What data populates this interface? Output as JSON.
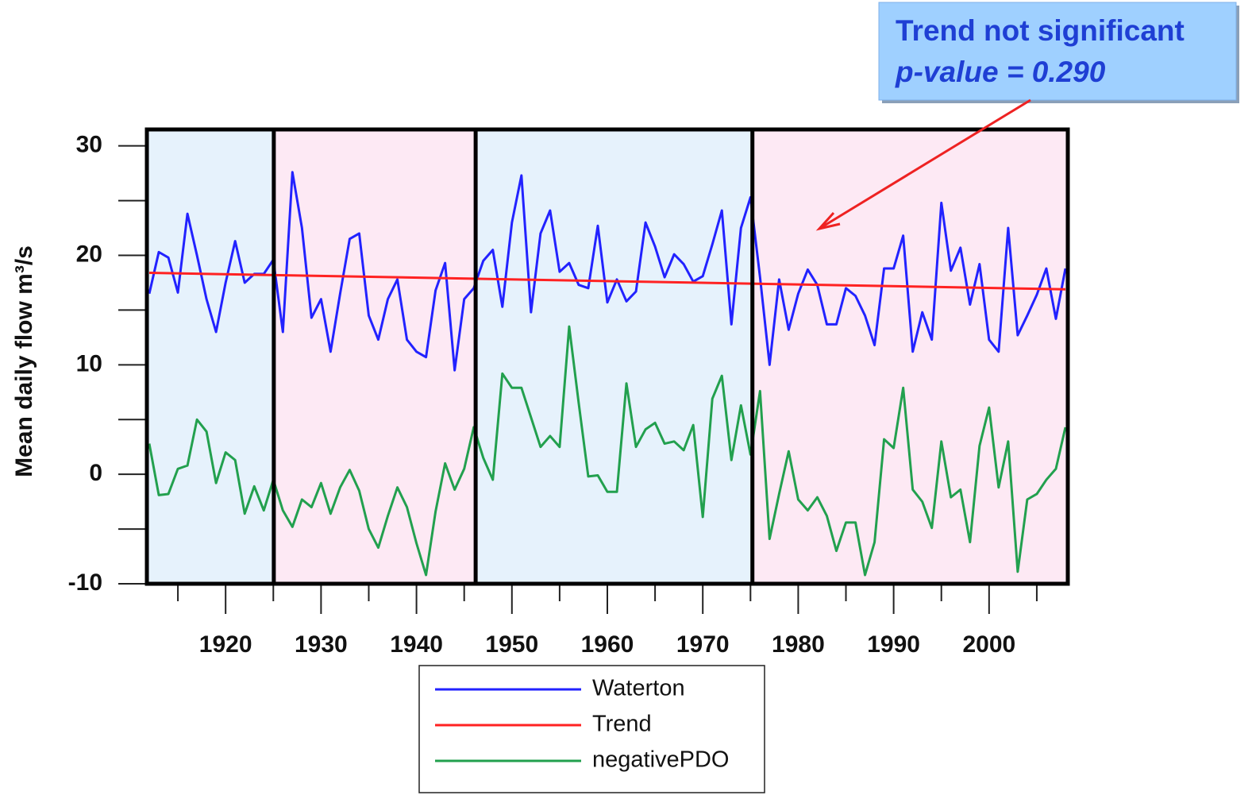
{
  "chart_data": {
    "type": "line",
    "y_label": "Mean daily flow m³/s",
    "annotation": {
      "title": "Trend not significant",
      "subtitle": "p-value = 0.290"
    },
    "xlim": [
      1911.75,
      2008.25
    ],
    "ylim": [
      -10,
      31.5
    ],
    "xticks": [
      1920,
      1930,
      1940,
      1950,
      1960,
      1970,
      1980,
      1990,
      2000
    ],
    "xminor_ticks": [
      1915,
      1925,
      1935,
      1945,
      1955,
      1965,
      1975,
      1985,
      1995,
      2005
    ],
    "yticks": [
      -10,
      0,
      10,
      20,
      30
    ],
    "yminor_ticks": [
      -5,
      5,
      15,
      25
    ],
    "regions": [
      {
        "start": 1911.75,
        "end": 1925.05,
        "color": "#e6f2fc"
      },
      {
        "start": 1925.05,
        "end": 1946.2,
        "color": "#fde9f4"
      },
      {
        "start": 1946.2,
        "end": 1975.2,
        "color": "#e6f2fc"
      },
      {
        "start": 1975.2,
        "end": 2008.25,
        "color": "#fde9f4"
      }
    ],
    "series": [
      {
        "name": "Waterton",
        "color": "#2222ff",
        "x": [
          1912,
          1913,
          1914,
          1915,
          1916,
          1917,
          1918,
          1919,
          1920,
          1921,
          1922,
          1923,
          1924,
          1925,
          1926,
          1927,
          1928,
          1929,
          1930,
          1931,
          1932,
          1933,
          1934,
          1935,
          1936,
          1937,
          1938,
          1939,
          1940,
          1941,
          1942,
          1943,
          1944,
          1945,
          1946,
          1947,
          1948,
          1949,
          1950,
          1951,
          1952,
          1953,
          1954,
          1955,
          1956,
          1957,
          1958,
          1959,
          1960,
          1961,
          1962,
          1963,
          1964,
          1965,
          1966,
          1967,
          1968,
          1969,
          1970,
          1971,
          1972,
          1973,
          1974,
          1975,
          1976,
          1977,
          1978,
          1979,
          1980,
          1981,
          1982,
          1983,
          1984,
          1985,
          1986,
          1987,
          1988,
          1989,
          1990,
          1991,
          1992,
          1993,
          1994,
          1995,
          1996,
          1997,
          1998,
          1999,
          2000,
          2001,
          2002,
          2003,
          2004,
          2005,
          2006,
          2007,
          2008
        ],
        "values": [
          16.5,
          20.3,
          19.8,
          16.6,
          23.8,
          20,
          16,
          13,
          17.5,
          21.3,
          17.5,
          18.3,
          18.3,
          19.6,
          13,
          27.6,
          22.5,
          14.3,
          16,
          11.2,
          16.5,
          21.5,
          22,
          14.5,
          12.3,
          16,
          17.8,
          12.3,
          11.2,
          10.7,
          16.8,
          19.3,
          9.5,
          16,
          17,
          19.5,
          20.5,
          15.3,
          23,
          27.3,
          14.8,
          22,
          24.1,
          18.5,
          19.3,
          17.3,
          17,
          22.7,
          15.7,
          17.8,
          15.8,
          16.7,
          23,
          20.8,
          18,
          20.1,
          19.2,
          17.6,
          18.1,
          21,
          24.1,
          13.7,
          22.5,
          25.3,
          18,
          10,
          17.8,
          13.2,
          16.5,
          18.7,
          17.3,
          13.7,
          13.7,
          17,
          16.3,
          14.5,
          11.8,
          18.8,
          18.8,
          21.8,
          11.2,
          14.8,
          12.3,
          24.8,
          18.6,
          20.7,
          15.5,
          19.2,
          12.3,
          11.2,
          22.5,
          12.7,
          14.5,
          16.4,
          18.8,
          14.2,
          18.8
        ]
      },
      {
        "name": "Trend",
        "color": "#ff2222",
        "x": [
          1912,
          2008
        ],
        "values": [
          18.4,
          16.9
        ]
      },
      {
        "name": "negativePDO",
        "color": "#22a04e",
        "x": [
          1912,
          1913,
          1914,
          1915,
          1916,
          1917,
          1918,
          1919,
          1920,
          1921,
          1922,
          1923,
          1924,
          1925,
          1926,
          1927,
          1928,
          1929,
          1930,
          1931,
          1932,
          1933,
          1934,
          1935,
          1936,
          1937,
          1938,
          1939,
          1940,
          1941,
          1942,
          1943,
          1944,
          1945,
          1946,
          1947,
          1948,
          1949,
          1950,
          1951,
          1952,
          1953,
          1954,
          1955,
          1956,
          1957,
          1958,
          1959,
          1960,
          1961,
          1962,
          1963,
          1964,
          1965,
          1966,
          1967,
          1968,
          1969,
          1970,
          1971,
          1972,
          1973,
          1974,
          1975,
          1976,
          1977,
          1978,
          1979,
          1980,
          1981,
          1982,
          1983,
          1984,
          1985,
          1986,
          1987,
          1988,
          1989,
          1990,
          1991,
          1992,
          1993,
          1994,
          1995,
          1996,
          1997,
          1998,
          1999,
          2000,
          2001,
          2002,
          2003,
          2004,
          2005,
          2006,
          2007,
          2008
        ],
        "values": [
          2.8,
          -1.9,
          -1.8,
          0.5,
          0.8,
          5,
          3.9,
          -0.8,
          2,
          1.3,
          -3.6,
          -1.1,
          -3.3,
          -0.5,
          -3.3,
          -4.8,
          -2.3,
          -3,
          -0.8,
          -3.6,
          -1.2,
          0.4,
          -1.5,
          -5,
          -6.7,
          -3.8,
          -1.2,
          -3,
          -6.3,
          -9.2,
          -3.4,
          1,
          -1.4,
          0.5,
          4.3,
          1.5,
          -0.5,
          9.2,
          7.9,
          7.9,
          5.2,
          2.5,
          3.5,
          2.5,
          13.5,
          6.5,
          -0.2,
          -0.1,
          -1.6,
          -1.6,
          8.3,
          2.5,
          4.1,
          4.7,
          2.8,
          3,
          2.2,
          4.5,
          -3.9,
          6.9,
          9,
          1.3,
          6.3,
          1.8,
          7.6,
          -5.9,
          -1.8,
          2.1,
          -2.3,
          -3.3,
          -2.1,
          -3.8,
          -7,
          -4.4,
          -4.4,
          -9.2,
          -6.2,
          3.2,
          2.4,
          7.9,
          -1.4,
          -2.5,
          -4.9,
          3,
          -2.1,
          -1.4,
          -6.2,
          2.6,
          6.1,
          -1.2,
          3,
          -8.9,
          -2.3,
          -1.8,
          -0.5,
          0.5,
          4.3
        ]
      }
    ]
  }
}
